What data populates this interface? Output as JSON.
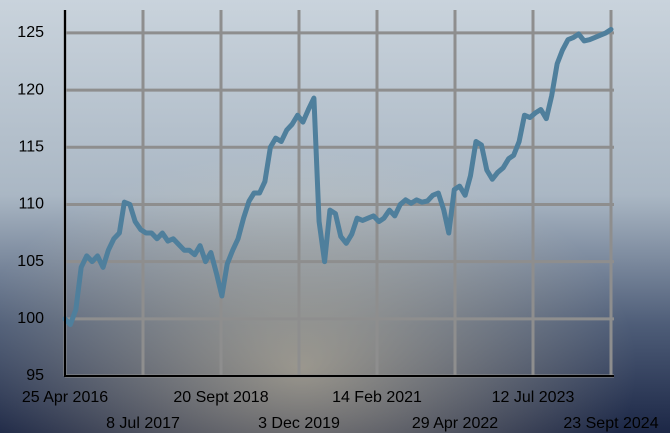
{
  "chart_data": {
    "type": "line",
    "x": [
      "2016-04-25",
      "2016-05-25",
      "2016-06-25",
      "2016-07-25",
      "2016-08-25",
      "2016-09-25",
      "2016-10-25",
      "2016-11-25",
      "2016-12-25",
      "2017-01-25",
      "2017-02-25",
      "2017-03-25",
      "2017-04-25",
      "2017-05-25",
      "2017-06-25",
      "2017-07-25",
      "2017-08-25",
      "2017-09-25",
      "2017-10-25",
      "2017-11-25",
      "2017-12-25",
      "2018-01-25",
      "2018-02-25",
      "2018-03-25",
      "2018-04-25",
      "2018-05-25",
      "2018-06-25",
      "2018-07-25",
      "2018-08-25",
      "2018-09-25",
      "2018-10-25",
      "2018-11-25",
      "2018-12-25",
      "2019-01-25",
      "2019-02-25",
      "2019-03-25",
      "2019-04-25",
      "2019-05-25",
      "2019-06-25",
      "2019-07-25",
      "2019-08-25",
      "2019-09-25",
      "2019-10-25",
      "2019-11-25",
      "2019-12-25",
      "2020-01-25",
      "2020-02-25",
      "2020-03-25",
      "2020-04-25",
      "2020-05-25",
      "2020-06-25",
      "2020-07-25",
      "2020-08-25",
      "2020-09-25",
      "2020-10-25",
      "2020-11-25",
      "2020-12-25",
      "2021-01-25",
      "2021-02-25",
      "2021-03-25",
      "2021-04-25",
      "2021-05-25",
      "2021-06-25",
      "2021-07-25",
      "2021-08-25",
      "2021-09-25",
      "2021-10-25",
      "2021-11-25",
      "2021-12-25",
      "2022-01-25",
      "2022-02-25",
      "2022-03-25",
      "2022-04-25",
      "2022-05-25",
      "2022-06-25",
      "2022-07-25",
      "2022-08-25",
      "2022-09-25",
      "2022-10-25",
      "2022-11-25",
      "2022-12-25",
      "2023-01-25",
      "2023-02-25",
      "2023-03-25",
      "2023-04-25",
      "2023-05-25",
      "2023-06-25",
      "2023-07-25",
      "2023-08-25",
      "2023-09-25",
      "2023-10-25",
      "2023-11-25",
      "2023-12-25",
      "2024-01-25",
      "2024-02-25",
      "2024-03-25",
      "2024-04-25",
      "2024-05-25",
      "2024-06-25",
      "2024-07-25",
      "2024-08-25",
      "2024-09-23"
    ],
    "values": [
      100,
      99.5,
      100.8,
      104.5,
      105.5,
      105,
      105.5,
      104.5,
      106,
      107,
      107.5,
      110.2,
      110,
      108.5,
      107.8,
      107.5,
      107.5,
      107,
      107.5,
      106.8,
      107,
      106.5,
      106,
      106,
      105.6,
      106.4,
      105,
      105.8,
      104,
      102,
      104.8,
      106,
      107,
      108.8,
      110.3,
      111,
      111,
      112,
      115,
      115.8,
      115.5,
      116.5,
      117,
      117.8,
      117.2,
      118.3,
      119.3,
      108.5,
      105,
      109.5,
      109.2,
      107.2,
      106.6,
      107.4,
      108.8,
      108.6,
      108.8,
      109,
      108.5,
      108.8,
      109.5,
      109,
      110,
      110.4,
      110.1,
      110.4,
      110.2,
      110.3,
      110.8,
      111,
      109.5,
      107.5,
      111.3,
      111.6,
      110.8,
      112.5,
      115.5,
      115.2,
      113,
      112.2,
      112.8,
      113.2,
      114,
      114.3,
      115.5,
      117.8,
      117.6,
      118,
      118.3,
      117.5,
      119.5,
      122.3,
      123.5,
      124.4,
      124.6,
      124.9,
      124.3,
      124.4,
      124.6,
      124.8,
      125,
      125.3
    ],
    "color": "#4f7f9c",
    "xlim": [
      "2016-04-25",
      "2024-09-23"
    ],
    "xticks": [
      {
        "value": "2016-04-25",
        "label": "25 Apr 2016"
      },
      {
        "value": "2017-07-08",
        "label": "8 Jul 2017"
      },
      {
        "value": "2018-09-20",
        "label": "20 Sept 2018"
      },
      {
        "value": "2019-12-03",
        "label": "3 Dec 2019"
      },
      {
        "value": "2021-02-14",
        "label": "14 Feb 2021"
      },
      {
        "value": "2022-04-29",
        "label": "29 Apr 2022"
      },
      {
        "value": "2023-07-12",
        "label": "12 Jul 2023"
      },
      {
        "value": "2024-09-23",
        "label": "23 Sept 2024"
      }
    ],
    "ylim": [
      95,
      127
    ],
    "yticks": [
      95,
      100,
      105,
      110,
      115,
      120,
      125
    ],
    "grid": true
  }
}
